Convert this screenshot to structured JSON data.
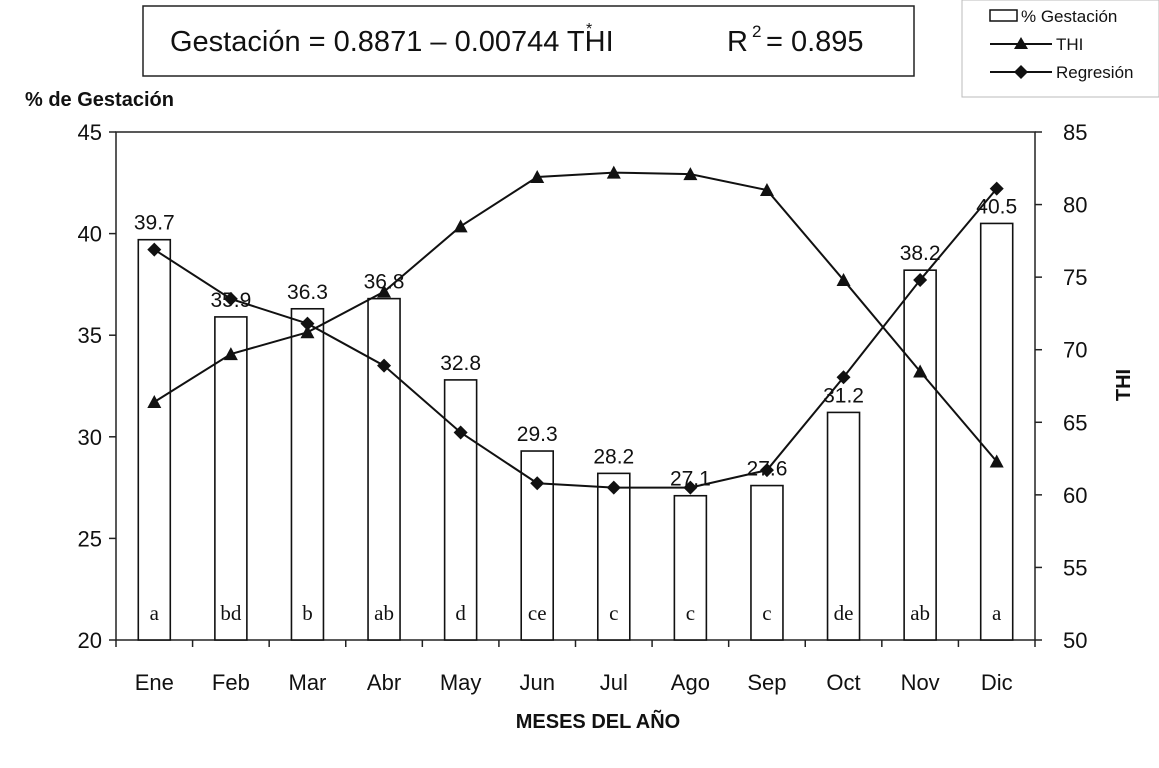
{
  "chart_data": {
    "type": "bar",
    "title": "",
    "equation": "Gestación = 0.8871 – 0.00744 THI",
    "equation_mark": "*",
    "r2_label": "R",
    "r2_exp": "2",
    "r2_value": "= 0.895",
    "xlabel": "MESES DEL AÑO",
    "ylabel": "% de Gestación",
    "y2label": "THI",
    "categories": [
      "Ene",
      "Feb",
      "Mar",
      "Abr",
      "May",
      "Jun",
      "Jul",
      "Ago",
      "Sep",
      "Oct",
      "Nov",
      "Dic"
    ],
    "ylim": [
      20,
      45
    ],
    "yticks": [
      "20",
      "25",
      "30",
      "35",
      "40",
      "45"
    ],
    "y2lim": [
      50,
      85
    ],
    "y2ticks": [
      "50",
      "55",
      "60",
      "65",
      "70",
      "75",
      "80",
      "85"
    ],
    "legend_position": "top-right",
    "grid": false,
    "series": [
      {
        "name": "% Gestación",
        "type": "bar",
        "axis": "left",
        "values": [
          39.7,
          35.9,
          36.3,
          36.8,
          32.8,
          29.3,
          28.2,
          27.1,
          27.6,
          31.2,
          38.2,
          40.5
        ],
        "data_labels": [
          "39.7",
          "35.9",
          "36.3",
          "36.8",
          "32.8",
          "29.3",
          "28.2",
          "27.1",
          "27.6",
          "31.2",
          "38.2",
          "40.5"
        ],
        "letters": [
          "a",
          "bd",
          "b",
          "ab",
          "d",
          "ce",
          "c",
          "c",
          "c",
          "de",
          "ab",
          "a"
        ]
      },
      {
        "name": "THI",
        "type": "line",
        "marker": "triangle",
        "axis": "right",
        "values": [
          66.4,
          69.7,
          71.2,
          74.0,
          78.5,
          81.9,
          82.2,
          82.1,
          81.0,
          74.8,
          68.5,
          62.3
        ]
      },
      {
        "name": "Regresión",
        "type": "line",
        "marker": "diamond",
        "axis": "right",
        "values": [
          76.9,
          73.5,
          71.8,
          68.9,
          64.3,
          60.8,
          60.5,
          60.5,
          61.7,
          68.1,
          74.8,
          81.1
        ]
      }
    ]
  }
}
